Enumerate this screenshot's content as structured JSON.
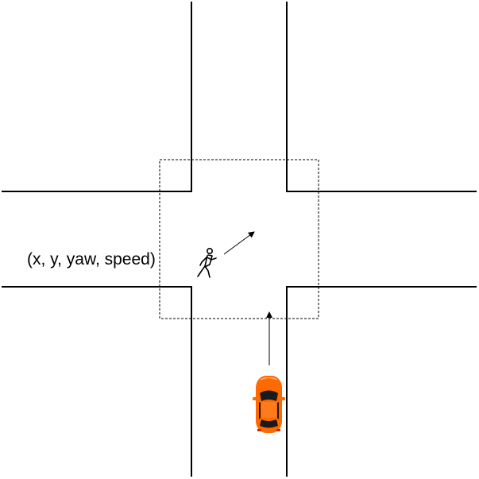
{
  "diagram": {
    "state_label": "(x, y, yaw, speed)",
    "elements": {
      "road": "road-edges",
      "zone": "intersection-zone",
      "pedestrian": "pedestrian-icon",
      "vehicle": "car-icon"
    },
    "colors": {
      "background": "#ffffff",
      "road_edge": "#000000",
      "zone_border": "#000000",
      "car_body": "#ff6a00",
      "car_glass": "#1a1a1a",
      "pedestrian": "#000000"
    }
  }
}
